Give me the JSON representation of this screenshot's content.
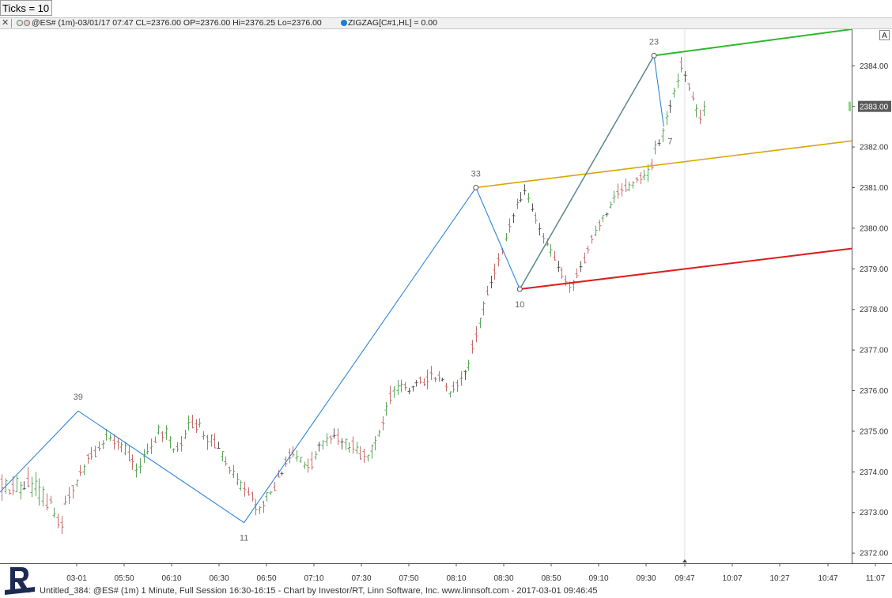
{
  "ticks_box": {
    "label": "Ticks = 10"
  },
  "info_bar": {
    "symbol_text": "@ES# (1m)-03/01/17 07:47 CL=2376.00 OP=2376.00 Hi=2376.25 Lo=2376.00",
    "indicator_text": "ZIGZAG[C#1,HL] = 0.00"
  },
  "a_button": "A",
  "footer": "Untitled_384: @ES# (1m) 1 Minute, Full Session 16:30-16:15 - Chart by Investor/RT, Linn Software, Inc. www.linnsoft.com - 2017-03-01 09:46:45",
  "colors": {
    "zigzag": "#2f86d6",
    "up_bar": "#5aa55a",
    "down_bar": "#c96b6b",
    "neutral_bar": "#555555",
    "channel_top": "#2db82d",
    "channel_mid": "#d9a400",
    "channel_bottom": "#dd1c1c",
    "projection": "#d9a400",
    "price_tag_bg": "#5a5a5a"
  },
  "chart_data": {
    "type": "line",
    "series": [
      {
        "values": [
          2373.5,
          2375.5,
          2372.75,
          2381.0,
          2378.5,
          2384.25,
          2382.5
        ]
      }
    ],
    "zigzag_times": [
      "05:44",
      "05:44",
      "06:52",
      "08:27",
      "08:45",
      "09:40",
      "09:44"
    ],
    "zigzag_pivots": [
      {
        "time": "05:44",
        "price": 2375.5,
        "label": "39"
      },
      {
        "time": "06:52",
        "price": 2372.75,
        "label": "11"
      },
      {
        "time": "08:27",
        "price": 2381.0,
        "label": "33"
      },
      {
        "time": "08:45",
        "price": 2378.5,
        "label": "10"
      },
      {
        "time": "09:40",
        "price": 2384.25,
        "label": "23"
      },
      {
        "time": "09:44",
        "price": 2382.5,
        "label": "7"
      }
    ],
    "channel_lines": [
      {
        "name": "top",
        "from": {
          "time": "09:40",
          "price": 2384.25
        },
        "to": {
          "time": "11:01",
          "price": 2384.9
        }
      },
      {
        "name": "middle",
        "from": {
          "time": "08:27",
          "price": 2381.0
        },
        "to": {
          "time": "11:01",
          "price": 2382.15
        }
      },
      {
        "name": "bottom",
        "from": {
          "time": "08:45",
          "price": 2378.5
        },
        "to": {
          "time": "11:01",
          "price": 2379.5
        }
      },
      {
        "name": "projection",
        "from": {
          "time": "08:45",
          "price": 2378.5
        },
        "to": {
          "time": "09:40",
          "price": 2384.25
        }
      }
    ],
    "current_price": "2383.00",
    "x_ticks": [
      "03-01",
      "05:50",
      "06:10",
      "06:30",
      "06:50",
      "07:10",
      "07:30",
      "07:50",
      "08:10",
      "08:30",
      "08:50",
      "09:10",
      "09:30",
      "09:47",
      "10:07",
      "10:27",
      "10:47",
      "11:07"
    ],
    "y_ticks": [
      "2372.00",
      "2373.00",
      "2374.00",
      "2375.00",
      "2376.00",
      "2377.00",
      "2378.00",
      "2379.00",
      "2380.00",
      "2381.00",
      "2382.00",
      "2383.00",
      "2384.00"
    ],
    "ylim": [
      2371.75,
      2384.9
    ],
    "xlim": [
      "05:12",
      "11:01"
    ],
    "grid": false,
    "bars": [
      [
        2373.82,
        2373.61,
        2373.94,
        2373.29
      ],
      [
        2373.52,
        2373.78,
        2373.84,
        2373.46
      ],
      [
        2373.56,
        2373.47,
        2373.56,
        2373.44
      ],
      [
        2373.69,
        2373.55,
        2373.9,
        2373.42
      ],
      [
        2373.51,
        2373.84,
        2373.91,
        2373.5
      ],
      [
        2373.49,
        2373.67,
        2373.76,
        2373.32
      ],
      [
        2373.58,
        2373.59,
        2373.77,
        2373.56
      ],
      [
        2373.84,
        2373.65,
        2374.12,
        2373.62
      ],
      [
        2373.49,
        2373.71,
        2373.88,
        2373.38
      ],
      [
        2373.58,
        2373.77,
        2374.0,
        2373.4
      ],
      [
        2373.36,
        2373.62,
        2373.84,
        2373.17
      ],
      [
        2373.28,
        2373.57,
        2373.65,
        2373.15
      ],
      [
        2373.18,
        2373.12,
        2373.47,
        2373.05
      ],
      [
        2373.31,
        2373.26,
        2373.41,
        2373.21
      ],
      [
        2372.93,
        2372.97,
        2373.12,
        2372.87
      ],
      [
        2372.87,
        2372.69,
        2372.97,
        2372.61
      ],
      [
        2372.75,
        2372.64,
        2372.91,
        2372.47
      ],
      [
        2373.21,
        2373.26,
        2373.41,
        2373.19
      ],
      [
        2373.42,
        2373.38,
        2373.63,
        2373.21
      ],
      [
        2373.66,
        2373.54,
        2373.68,
        2373.34
      ],
      [
        2373.68,
        2373.79,
        2373.81,
        2373.63
      ],
      [
        2374.01,
        2373.98,
        2374.17,
        2373.9
      ],
      [
        2374.0,
        2374.13,
        2374.19,
        2373.92
      ],
      [
        2374.41,
        2374.33,
        2374.45,
        2374.2
      ],
      [
        2374.45,
        2374.37,
        2374.61,
        2374.3
      ],
      [
        2374.52,
        2374.38,
        2374.64,
        2374.36
      ],
      [
        2374.6,
        2374.58,
        2374.75,
        2374.51
      ],
      [
        2374.68,
        2374.7,
        2374.78,
        2374.56
      ],
      [
        2374.92,
        2375.01,
        2375.06,
        2374.77
      ],
      [
        2374.81,
        2374.84,
        2374.93,
        2374.76
      ],
      [
        2374.78,
        2374.69,
        2374.93,
        2374.55
      ],
      [
        2374.75,
        2374.73,
        2374.82,
        2374.54
      ],
      [
        2374.61,
        2374.67,
        2374.74,
        2374.48
      ],
      [
        2374.46,
        2374.65,
        2374.74,
        2374.41
      ],
      [
        2374.49,
        2374.27,
        2374.65,
        2374.26
      ],
      [
        2374.31,
        2374.25,
        2374.43,
        2374.05
      ],
      [
        2374.04,
        2374.06,
        2374.21,
        2373.86
      ],
      [
        2374.12,
        2374.14,
        2374.34,
        2373.96
      ],
      [
        2374.37,
        2374.42,
        2374.56,
        2374.22
      ],
      [
        2374.47,
        2374.5,
        2374.7,
        2374.43
      ],
      [
        2374.59,
        2374.63,
        2374.82,
        2374.44
      ],
      [
        2374.75,
        2374.72,
        2374.87,
        2374.72
      ],
      [
        2374.96,
        2375.1,
        2375.16,
        2374.92
      ],
      [
        2374.96,
        2374.85,
        2375.0,
        2374.73
      ],
      [
        2374.96,
        2375.06,
        2375.15,
        2374.79
      ],
      [
        2374.78,
        2374.83,
        2374.88,
        2374.58
      ],
      [
        2374.54,
        2374.56,
        2374.58,
        2374.47
      ],
      [
        2374.62,
        2374.56,
        2374.73,
        2374.49
      ],
      [
        2374.7,
        2374.66,
        2374.88,
        2374.5
      ],
      [
        2374.84,
        2374.94,
        2375.04,
        2374.81
      ],
      [
        2375.19,
        2375.22,
        2375.39,
        2375.02
      ],
      [
        2375.23,
        2375.09,
        2375.41,
        2375.07
      ],
      [
        2375.18,
        2375.05,
        2375.3,
        2374.96
      ],
      [
        2375.17,
        2375.2,
        2375.32,
        2375.09
      ],
      [
        2374.87,
        2374.89,
        2375.0,
        2374.79
      ],
      [
        2374.86,
        2374.74,
        2374.91,
        2374.54
      ],
      [
        2374.74,
        2374.9,
        2374.92,
        2374.62
      ],
      [
        2374.8,
        2374.59,
        2374.95,
        2374.58
      ],
      [
        2374.58,
        2374.58,
        2374.74,
        2374.57
      ],
      [
        2374.38,
        2374.5,
        2374.51,
        2374.26
      ],
      [
        2374.25,
        2374.2,
        2374.38,
        2374.15
      ],
      [
        2374.11,
        2374.03,
        2374.13,
        2373.95
      ],
      [
        2373.94,
        2374.01,
        2374.17,
        2373.85
      ],
      [
        2373.73,
        2373.82,
        2373.97,
        2373.67
      ],
      [
        2373.59,
        2373.74,
        2373.79,
        2373.54
      ],
      [
        2373.59,
        2373.56,
        2373.76,
        2373.39
      ],
      [
        2373.5,
        2373.44,
        2373.62,
        2373.41
      ],
      [
        2373.48,
        2373.33,
        2373.51,
        2373.27
      ],
      [
        2373.19,
        2373.07,
        2373.33,
        2372.93
      ],
      [
        2373.07,
        2373.12,
        2373.16,
        2372.96
      ],
      [
        2373.26,
        2373.17,
        2373.29,
        2372.99
      ],
      [
        2373.39,
        2373.49,
        2373.5,
        2373.27
      ],
      [
        2373.48,
        2373.5,
        2373.53,
        2373.43
      ],
      [
        2373.62,
        2373.54,
        2373.75,
        2373.52
      ],
      [
        2373.9,
        2373.87,
        2374.05,
        2373.86
      ],
      [
        2373.96,
        2373.96,
        2374.01,
        2373.91
      ],
      [
        2374.31,
        2374.2,
        2374.38,
        2374.12
      ],
      [
        2374.48,
        2374.34,
        2374.58,
        2374.21
      ],
      [
        2374.49,
        2374.42,
        2374.63,
        2374.36
      ],
      [
        2374.34,
        2374.38,
        2374.53,
        2374.25
      ],
      [
        2374.27,
        2374.36,
        2374.37,
        2374.22
      ],
      [
        2374.14,
        2374.18,
        2374.25,
        2374.07
      ],
      [
        2374.15,
        2374.11,
        2374.33,
        2373.98
      ],
      [
        2374.3,
        2374.12,
        2374.5,
        2374.05
      ],
      [
        2374.36,
        2374.43,
        2374.51,
        2374.3
      ],
      [
        2374.66,
        2374.67,
        2374.74,
        2374.5
      ],
      [
        2374.65,
        2374.75,
        2374.78,
        2374.55
      ],
      [
        2374.75,
        2374.83,
        2374.95,
        2374.63
      ],
      [
        2374.86,
        2374.81,
        2374.9,
        2374.69
      ],
      [
        2374.88,
        2374.89,
        2375.07,
        2374.82
      ],
      [
        2374.9,
        2374.76,
        2375.07,
        2374.66
      ],
      [
        2374.73,
        2374.74,
        2374.83,
        2374.55
      ],
      [
        2374.72,
        2374.8,
        2374.82,
        2374.54
      ],
      [
        2374.58,
        2374.6,
        2374.73,
        2374.47
      ],
      [
        2374.76,
        2374.56,
        2374.87,
        2374.45
      ],
      [
        2374.53,
        2374.61,
        2374.74,
        2374.44
      ],
      [
        2374.45,
        2374.32,
        2374.63,
        2374.3
      ],
      [
        2374.5,
        2374.38,
        2374.57,
        2374.22
      ],
      [
        2374.37,
        2374.41,
        2374.42,
        2374.25
      ],
      [
        2374.51,
        2374.64,
        2374.68,
        2374.32
      ],
      [
        2374.71,
        2374.78,
        2374.88,
        2374.53
      ],
      [
        2374.9,
        2374.98,
        2375.04,
        2374.86
      ],
      [
        2375.22,
        2375.19,
        2375.37,
        2375.02
      ],
      [
        2375.52,
        2375.62,
        2375.72,
        2375.38
      ],
      [
        2375.93,
        2375.76,
        2376.12,
        2375.67
      ],
      [
        2375.99,
        2376.04,
        2376.11,
        2375.82
      ],
      [
        2376.0,
        2376.12,
        2376.26,
        2375.89
      ],
      [
        2376.12,
        2376.16,
        2376.27,
        2375.96
      ],
      [
        2376.15,
        2376.08,
        2376.21,
        2376.0
      ],
      [
        2375.98,
        2375.99,
        2376.07,
        2375.91
      ],
      [
        2376.09,
        2376.1,
        2376.12,
        2375.98
      ],
      [
        2376.19,
        2376.2,
        2376.26,
        2376.1
      ],
      [
        2376.31,
        2376.21,
        2376.35,
        2376.17
      ],
      [
        2376.2,
        2376.15,
        2376.31,
        2376.11
      ],
      [
        2376.34,
        2376.22,
        2376.52,
        2376.03
      ],
      [
        2376.44,
        2376.41,
        2376.61,
        2376.26
      ],
      [
        2376.3,
        2376.28,
        2376.34,
        2376.21
      ],
      [
        2376.38,
        2376.31,
        2376.48,
        2376.22
      ],
      [
        2376.26,
        2376.27,
        2376.32,
        2376.23
      ],
      [
        2376.11,
        2376.09,
        2376.19,
        2375.98
      ],
      [
        2375.92,
        2375.97,
        2375.98,
        2375.83
      ],
      [
        2376.11,
        2376.03,
        2376.23,
        2375.95
      ],
      [
        2376.19,
        2376.12,
        2376.27,
        2375.97
      ],
      [
        2376.29,
        2376.31,
        2376.48,
        2376.12
      ],
      [
        2376.47,
        2376.46,
        2376.51,
        2376.26
      ],
      [
        2376.57,
        2376.67,
        2376.76,
        2376.49
      ],
      [
        2377.13,
        2377.03,
        2377.25,
        2376.91
      ],
      [
        2377.39,
        2377.35,
        2377.59,
        2377.19
      ],
      [
        2377.66,
        2377.78,
        2377.79,
        2377.54
      ],
      [
        2378.0,
        2378.14,
        2378.2,
        2377.85
      ],
      [
        2378.45,
        2378.36,
        2378.58,
        2378.35
      ],
      [
        2378.66,
        2378.66,
        2378.83,
        2378.52
      ],
      [
        2378.97,
        2378.89,
        2379.13,
        2378.73
      ],
      [
        2379.25,
        2379.22,
        2379.39,
        2379.06
      ],
      [
        2379.48,
        2379.41,
        2379.51,
        2379.35
      ],
      [
        2379.73,
        2379.76,
        2379.88,
        2379.68
      ],
      [
        2380.08,
        2380.04,
        2380.24,
        2379.89
      ],
      [
        2380.31,
        2380.31,
        2380.37,
        2380.13
      ],
      [
        2380.58,
        2380.63,
        2380.73,
        2380.47
      ],
      [
        2380.69,
        2380.7,
        2380.89,
        2380.64
      ],
      [
        2380.93,
        2380.92,
        2381.08,
        2380.82
      ],
      [
        2380.72,
        2380.74,
        2380.87,
        2380.63
      ],
      [
        2380.46,
        2380.47,
        2380.61,
        2380.41
      ],
      [
        2380.32,
        2380.19,
        2380.39,
        2380.11
      ],
      [
        2379.98,
        2379.99,
        2380.13,
        2379.82
      ],
      [
        2379.79,
        2379.74,
        2379.88,
        2379.62
      ],
      [
        2379.59,
        2379.61,
        2379.75,
        2379.56
      ],
      [
        2379.41,
        2379.47,
        2379.61,
        2379.3
      ],
      [
        2379.29,
        2379.22,
        2379.44,
        2379.2
      ],
      [
        2379.03,
        2379.04,
        2379.2,
        2378.92
      ],
      [
        2378.97,
        2378.81,
        2379.04,
        2378.75
      ],
      [
        2378.73,
        2378.68,
        2378.84,
        2378.58
      ],
      [
        2378.64,
        2378.54,
        2378.69,
        2378.41
      ],
      [
        2378.62,
        2378.69,
        2378.73,
        2378.46
      ],
      [
        2378.88,
        2378.83,
        2379.01,
        2378.77
      ],
      [
        2379.05,
        2379.05,
        2379.19,
        2378.92
      ],
      [
        2379.27,
        2379.16,
        2379.4,
        2379.13
      ],
      [
        2379.5,
        2379.47,
        2379.57,
        2379.37
      ],
      [
        2379.79,
        2379.72,
        2379.84,
        2379.62
      ],
      [
        2379.84,
        2379.95,
        2380.06,
        2379.8
      ],
      [
        2380.14,
        2380.06,
        2380.21,
        2379.93
      ],
      [
        2380.25,
        2380.32,
        2380.32,
        2380.15
      ],
      [
        2380.34,
        2380.35,
        2380.39,
        2380.28
      ],
      [
        2380.52,
        2380.59,
        2380.66,
        2380.49
      ],
      [
        2380.74,
        2380.79,
        2380.92,
        2380.62
      ],
      [
        2380.9,
        2380.84,
        2381.1,
        2380.73
      ],
      [
        2380.96,
        2380.93,
        2381.11,
        2380.78
      ],
      [
        2381.06,
        2380.94,
        2381.22,
        2380.89
      ],
      [
        2380.95,
        2381.07,
        2381.15,
        2380.91
      ],
      [
        2381.06,
        2381.12,
        2381.16,
        2380.98
      ],
      [
        2381.22,
        2381.19,
        2381.26,
        2381.12
      ],
      [
        2381.29,
        2381.2,
        2381.38,
        2381.09
      ],
      [
        2381.26,
        2381.3,
        2381.44,
        2381.18
      ],
      [
        2381.3,
        2381.45,
        2381.57,
        2381.14
      ],
      [
        2381.58,
        2381.49,
        2381.71,
        2381.43
      ],
      [
        2381.96,
        2382.05,
        2382.16,
        2381.82
      ],
      [
        2382.09,
        2382.09,
        2382.19,
        2382.02
      ],
      [
        2382.27,
        2382.4,
        2382.47,
        2382.12
      ],
      [
        2382.72,
        2382.76,
        2382.89,
        2382.54
      ],
      [
        2383.02,
        2383.01,
        2383.16,
        2382.84
      ],
      [
        2383.32,
        2383.38,
        2383.46,
        2383.22
      ],
      [
        2383.61,
        2383.64,
        2383.81,
        2383.45
      ],
      [
        2384.09,
        2383.94,
        2384.22,
        2383.84
      ],
      [
        2383.77,
        2383.76,
        2383.87,
        2383.6
      ],
      [
        2383.56,
        2383.45,
        2383.57,
        2383.38
      ],
      [
        2383.23,
        2383.19,
        2383.36,
        2383.14
      ],
      [
        2382.91,
        2382.95,
        2383.05,
        2382.73
      ],
      [
        2382.72,
        2382.68,
        2382.92,
        2382.56
      ],
      [
        2382.9,
        2383.0,
        2383.13,
        2382.76
      ]
    ]
  }
}
